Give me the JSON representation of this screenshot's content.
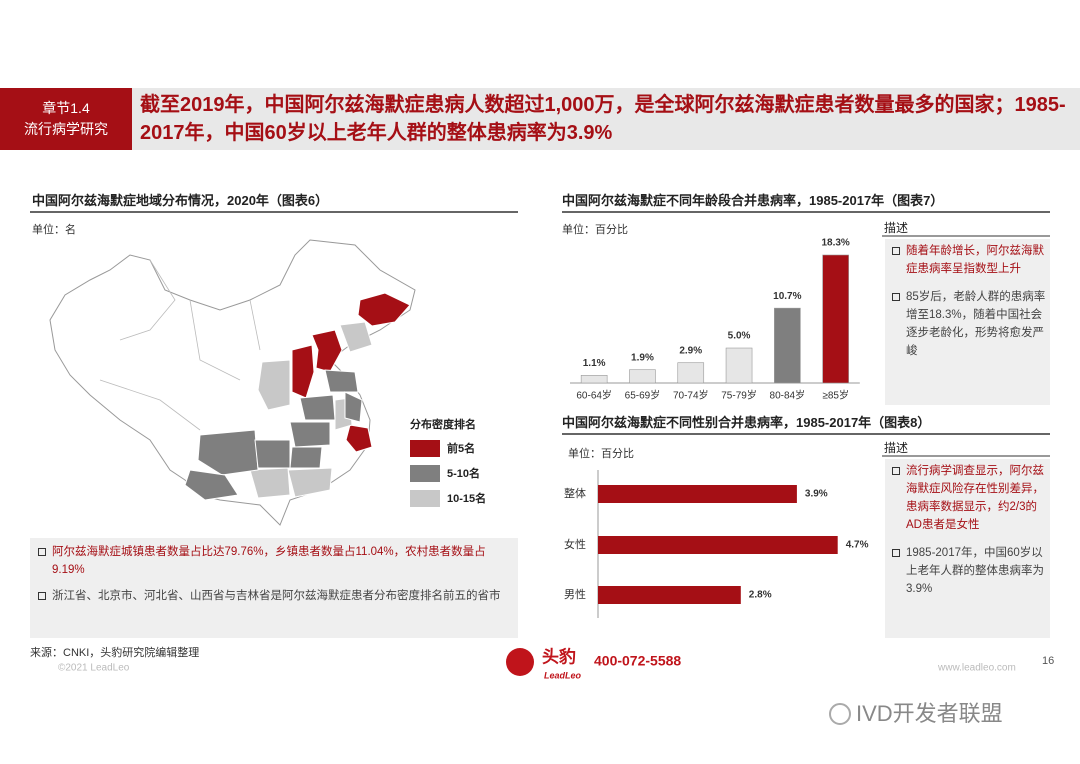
{
  "header": {
    "chapter": "章节1.4",
    "section": "流行病学研究",
    "title": "截至2019年，中国阿尔兹海默症患病人数超过1,000万，是全球阿尔兹海默症患者数量最多的国家；1985-2017年，中国60岁以上老年人群的整体患病率为3.9%"
  },
  "map": {
    "title": "中国阿尔兹海默症地域分布情况，2020年（图表6）",
    "unit": "单位：名",
    "legend": {
      "title": "分布密度排名",
      "items": [
        {
          "label": "前5名",
          "color": "#a50f15"
        },
        {
          "label": "5-10名",
          "color": "#7f7f7f"
        },
        {
          "label": "10-15名",
          "color": "#c8c8c8"
        }
      ]
    },
    "notes": [
      "阿尔兹海默症城镇患者数量占比达79.76%，乡镇患者数量占11.04%，农村患者数量占9.19%",
      "浙江省、北京市、河北省、山西省与吉林省是阿尔兹海默症患者分布密度排名前五的省市"
    ]
  },
  "chart_data": [
    {
      "type": "bar",
      "title": "中国阿尔兹海默症不同年龄段合并患病率，1985-2017年（图表7）",
      "subtitle": "单位：百分比",
      "categories": [
        "60-64岁",
        "65-69岁",
        "70-74岁",
        "75-79岁",
        "80-84岁",
        "≥85岁"
      ],
      "values": [
        1.1,
        1.9,
        2.9,
        5.0,
        10.7,
        18.3
      ],
      "value_labels": [
        "1.1%",
        "1.9%",
        "2.9%",
        "5.0%",
        "10.7%",
        "18.3%"
      ],
      "colors": [
        "#e6e6e6",
        "#e6e6e6",
        "#e6e6e6",
        "#e6e6e6",
        "#7f7f7f",
        "#a50f15"
      ]
    },
    {
      "type": "hbar",
      "title": "中国阿尔兹海默症不同性别合并患病率，1985-2017年（图表8）",
      "subtitle": "单位：百分比",
      "categories": [
        "整体",
        "女性",
        "男性"
      ],
      "values": [
        3.9,
        4.7,
        2.8
      ],
      "value_labels": [
        "3.9%",
        "4.7%",
        "2.8%"
      ],
      "color": "#a50f15"
    }
  ],
  "descriptions": [
    {
      "title": "描述",
      "items": [
        "随着年龄增长，阿尔兹海默症患病率呈指数型上升",
        "85岁后，老龄人群的患病率增至18.3%，随着中国社会逐步老龄化，形势将愈发严峻"
      ]
    },
    {
      "title": "描述",
      "items": [
        "流行病学调查显示，阿尔兹海默症风险存在性别差异，患病率数据显示，约2/3的AD患者是女性",
        "1985-2017年，中国60岁以上老年人群的整体患病率为3.9%"
      ]
    }
  ],
  "footer": {
    "source": "来源：CNKI，头豹研究院编辑整理",
    "copyright": "©2021 LeadLeo",
    "logo": "头豹",
    "logo_sub": "LeadLeo",
    "phone": "400-072-5588",
    "website": "www.leadleo.com",
    "page": "16",
    "watermark": "IVD开发者联盟"
  }
}
